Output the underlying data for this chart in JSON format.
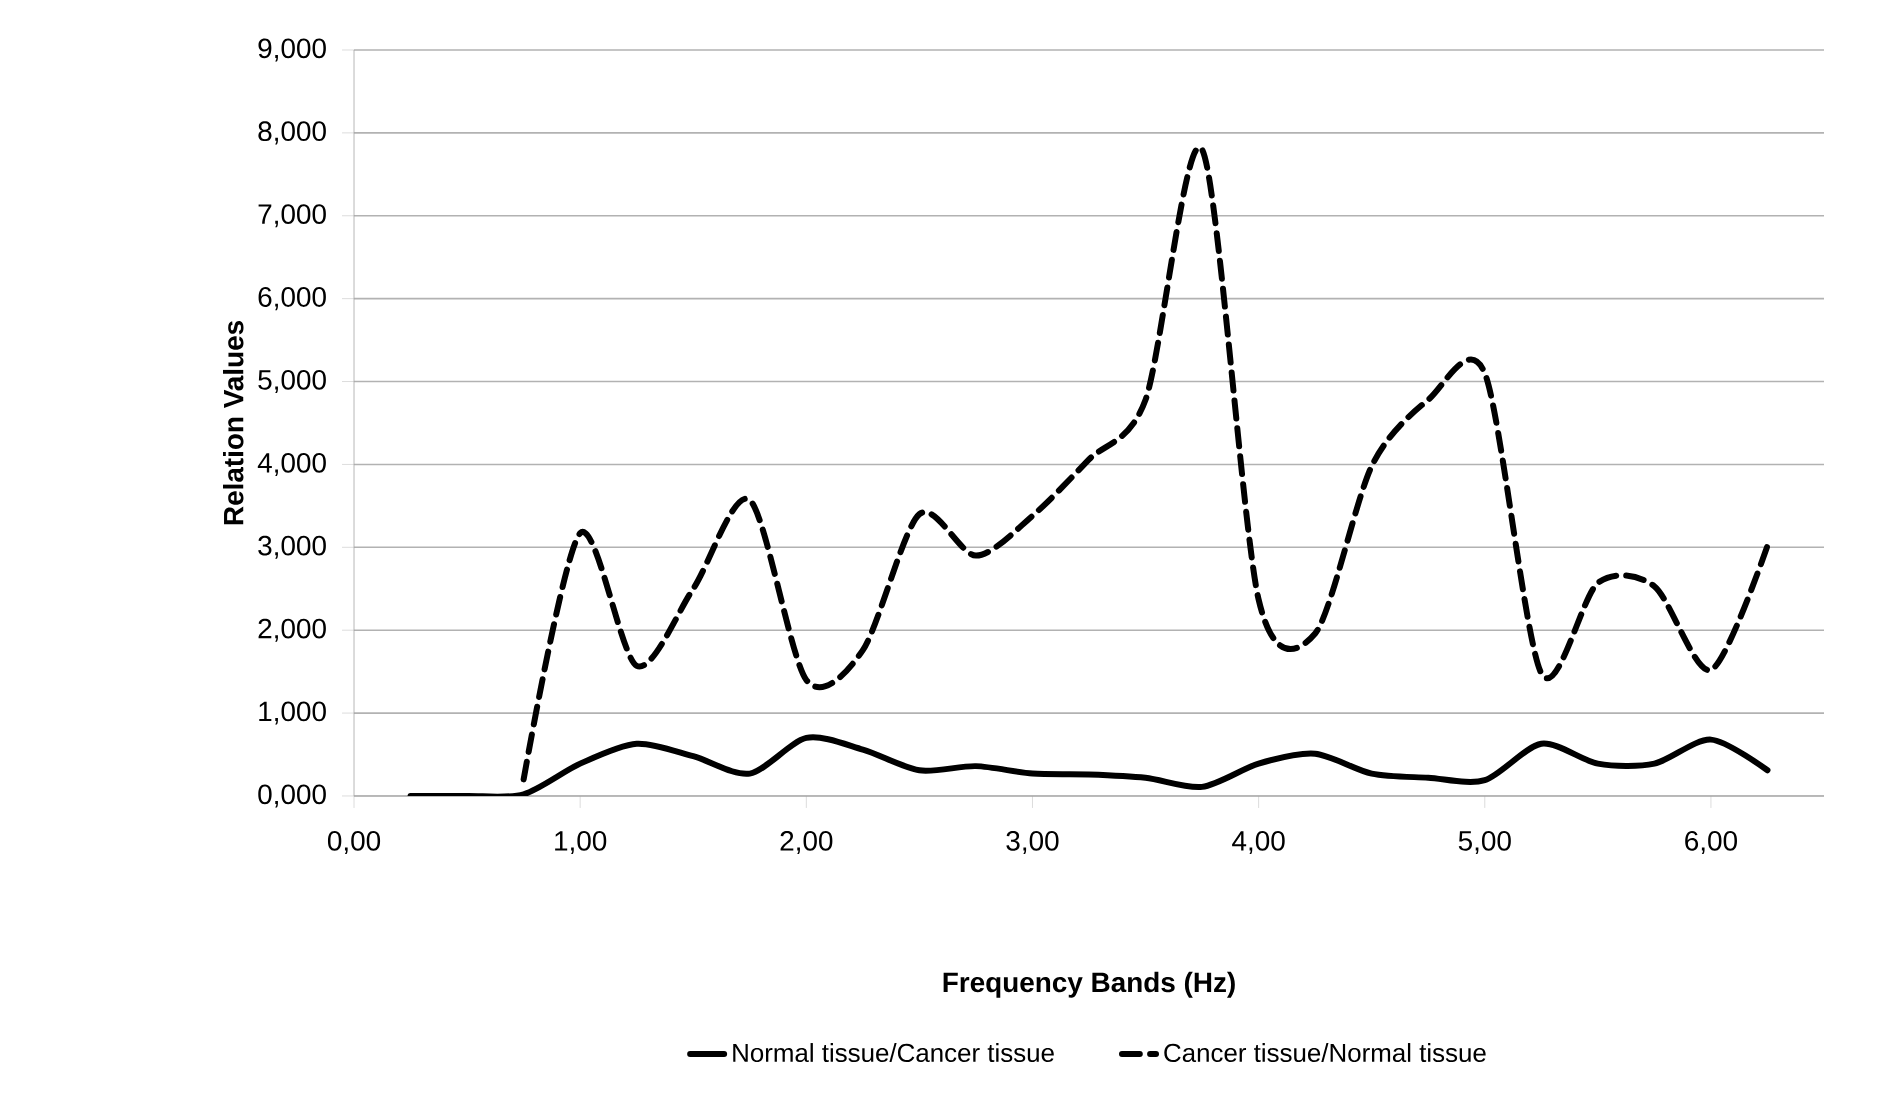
{
  "chart_data": {
    "type": "line",
    "xlabel": "Frequency Bands (Hz)",
    "ylabel": "Relation Values",
    "x": [
      0.25,
      0.5,
      0.75,
      1.0,
      1.25,
      1.5,
      1.75,
      2.0,
      2.25,
      2.5,
      2.75,
      3.0,
      3.25,
      3.5,
      3.75,
      4.0,
      4.25,
      4.5,
      4.75,
      5.0,
      5.25,
      5.5,
      5.75,
      6.0,
      6.25
    ],
    "series": [
      {
        "name": "Normal tissue/Cancer tissue",
        "color": "#000000",
        "line_style": "solid",
        "values": [
          0,
          0,
          0.02,
          0.39,
          0.63,
          0.48,
          0.27,
          0.7,
          0.56,
          0.31,
          0.36,
          0.27,
          0.26,
          0.22,
          0.11,
          0.39,
          0.51,
          0.27,
          0.22,
          0.19,
          0.63,
          0.39,
          0.39,
          0.68,
          0.31
        ]
      },
      {
        "name": "Cancer tissue/Normal tissue",
        "color": "#000000",
        "line_style": "dashed",
        "values": [
          null,
          null,
          0.2,
          3.17,
          1.57,
          2.5,
          3.57,
          1.4,
          1.76,
          3.4,
          2.9,
          3.38,
          4.06,
          4.78,
          7.8,
          2.37,
          1.96,
          3.98,
          4.78,
          5.1,
          1.48,
          2.57,
          2.53,
          1.52,
          3.02
        ]
      }
    ],
    "xlim": [
      0,
      6.5
    ],
    "ylim": [
      0,
      9
    ],
    "xticks": [
      {
        "value": 0,
        "label": "0,00"
      },
      {
        "value": 1,
        "label": "1,00"
      },
      {
        "value": 2,
        "label": "2,00"
      },
      {
        "value": 3,
        "label": "3,00"
      },
      {
        "value": 4,
        "label": "4,00"
      },
      {
        "value": 5,
        "label": "5,00"
      },
      {
        "value": 6,
        "label": "6,00"
      }
    ],
    "yticks": [
      {
        "value": 0,
        "label": "0,000"
      },
      {
        "value": 1,
        "label": "1,000"
      },
      {
        "value": 2,
        "label": "2,000"
      },
      {
        "value": 3,
        "label": "3,000"
      },
      {
        "value": 4,
        "label": "4,000"
      },
      {
        "value": 5,
        "label": "5,000"
      },
      {
        "value": 6,
        "label": "6,000"
      },
      {
        "value": 7,
        "label": "7,000"
      },
      {
        "value": 8,
        "label": "8,000"
      },
      {
        "value": 9,
        "label": "9,000"
      }
    ],
    "grid": "y",
    "legend": "bottom",
    "marker": "none"
  }
}
